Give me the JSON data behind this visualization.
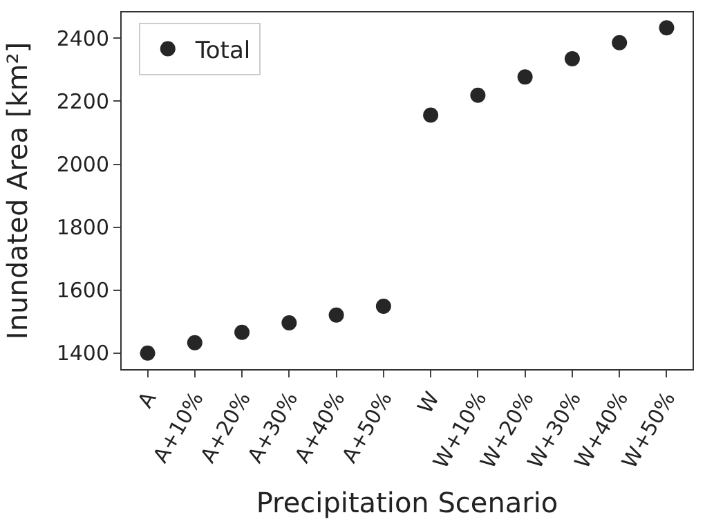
{
  "chart_data": {
    "type": "scatter",
    "xlabel": "Precipitation Scenario",
    "ylabel": "Inundated Area [km²]",
    "categories": [
      "A",
      "A+10%",
      "A+20%",
      "A+30%",
      "A+40%",
      "A+50%",
      "W",
      "W+10%",
      "W+20%",
      "W+30%",
      "W+40%",
      "W+50%"
    ],
    "series": [
      {
        "name": "Total",
        "color": "#262626",
        "values": [
          1400,
          1433,
          1466,
          1496,
          1521,
          1549,
          2156,
          2219,
          2277,
          2335,
          2386,
          2433
        ]
      }
    ],
    "ylim": [
      1349,
      2482
    ],
    "yticks": [
      1400,
      1600,
      1800,
      2000,
      2200,
      2400
    ],
    "legend": "top left",
    "marker": "circle"
  }
}
